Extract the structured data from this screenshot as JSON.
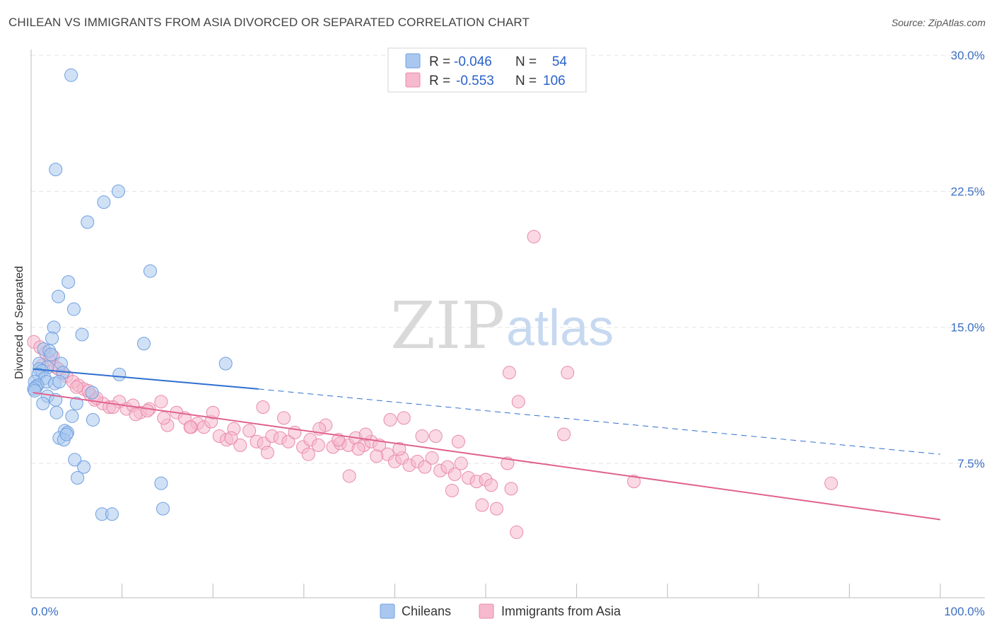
{
  "title": "CHILEAN VS IMMIGRANTS FROM ASIA DIVORCED OR SEPARATED CORRELATION CHART",
  "source": "Source: ZipAtlas.com",
  "watermark": {
    "zip": "ZIP",
    "atlas": "atlas"
  },
  "legend_box": {
    "rows": [
      {
        "r_label": "R =",
        "r_value": "-0.046",
        "n_label": "N =",
        "n_value": "54"
      },
      {
        "r_label": "R =",
        "r_value": "-0.553",
        "n_label": "N =",
        "n_value": "106"
      }
    ]
  },
  "bottom_legend": [
    "Chileans",
    "Immigrants from Asia"
  ],
  "colors": {
    "blue_fill": "#aac8ef",
    "blue_stroke": "#6f9fe0",
    "blue_line": "#2f6fd0",
    "pink_fill": "#f6b9cd",
    "pink_stroke": "#e98aab",
    "pink_line": "#e0628f",
    "tick_text": "#3b6fc4",
    "grid": "#e3e3e3"
  },
  "chart_data": {
    "type": "scatter",
    "xlabel": "",
    "ylabel": "Divorced or Separated",
    "xlim": [
      0,
      100
    ],
    "ylim": [
      0,
      31
    ],
    "x_tick_labels": [
      "0.0%",
      "100.0%"
    ],
    "y_ticks": [
      7.5,
      15.0,
      22.5,
      30.0
    ],
    "y_tick_labels": [
      "7.5%",
      "15.0%",
      "22.5%",
      "30.0%"
    ],
    "grid": "horizontal dashed",
    "legend_placement": "top-center",
    "series": [
      {
        "name": "Chileans",
        "color": "#aac8ef",
        "trend": {
          "x_start": 0.2,
          "y_start": 12.7,
          "x_solid_end": 25.0,
          "y_solid_end": 11.6,
          "x_end": 100,
          "y_end": 8.0
        },
        "points": [
          [
            4.4,
            28.9
          ],
          [
            2.7,
            23.7
          ],
          [
            9.6,
            22.5
          ],
          [
            8.0,
            21.9
          ],
          [
            6.2,
            20.8
          ],
          [
            13.1,
            18.1
          ],
          [
            4.1,
            17.5
          ],
          [
            3.0,
            16.7
          ],
          [
            4.7,
            16.0
          ],
          [
            2.5,
            15.0
          ],
          [
            5.6,
            14.6
          ],
          [
            2.3,
            14.4
          ],
          [
            12.4,
            14.1
          ],
          [
            1.4,
            13.8
          ],
          [
            2.0,
            13.7
          ],
          [
            2.2,
            13.5
          ],
          [
            21.4,
            13.0
          ],
          [
            0.9,
            13.0
          ],
          [
            3.3,
            13.0
          ],
          [
            1.8,
            12.8
          ],
          [
            0.9,
            12.7
          ],
          [
            1.2,
            12.6
          ],
          [
            3.5,
            12.5
          ],
          [
            0.8,
            12.4
          ],
          [
            9.7,
            12.4
          ],
          [
            1.5,
            12.2
          ],
          [
            1.7,
            12.0
          ],
          [
            0.4,
            12.0
          ],
          [
            2.6,
            11.9
          ],
          [
            3.1,
            12.0
          ],
          [
            0.7,
            11.8
          ],
          [
            0.5,
            11.7
          ],
          [
            0.3,
            11.6
          ],
          [
            6.7,
            11.4
          ],
          [
            0.4,
            11.5
          ],
          [
            1.8,
            11.2
          ],
          [
            2.7,
            11.0
          ],
          [
            5.0,
            10.8
          ],
          [
            1.3,
            10.8
          ],
          [
            2.8,
            10.3
          ],
          [
            4.5,
            10.1
          ],
          [
            6.8,
            9.9
          ],
          [
            3.7,
            9.3
          ],
          [
            4.0,
            9.2
          ],
          [
            3.1,
            8.9
          ],
          [
            3.6,
            8.8
          ],
          [
            4.8,
            7.7
          ],
          [
            5.8,
            7.3
          ],
          [
            5.1,
            6.7
          ],
          [
            14.3,
            6.4
          ],
          [
            14.5,
            5.0
          ],
          [
            7.8,
            4.7
          ],
          [
            8.9,
            4.7
          ],
          [
            3.9,
            9.1
          ]
        ]
      },
      {
        "name": "Immigrants from Asia",
        "color": "#f6b9cd",
        "trend": {
          "x_start": 0.2,
          "y_start": 11.4,
          "x_end": 100,
          "y_end": 4.4
        },
        "points": [
          [
            0.3,
            14.2
          ],
          [
            1.0,
            13.9
          ],
          [
            1.6,
            13.6
          ],
          [
            2.4,
            13.4
          ],
          [
            2.0,
            13.2
          ],
          [
            1.2,
            12.9
          ],
          [
            2.7,
            12.8
          ],
          [
            3.5,
            12.5
          ],
          [
            3.9,
            12.3
          ],
          [
            4.6,
            12.0
          ],
          [
            5.2,
            11.8
          ],
          [
            5.8,
            11.6
          ],
          [
            6.5,
            11.3
          ],
          [
            7.0,
            11.0
          ],
          [
            7.9,
            10.8
          ],
          [
            8.6,
            10.6
          ],
          [
            9.7,
            10.9
          ],
          [
            10.5,
            10.5
          ],
          [
            11.2,
            10.7
          ],
          [
            12.0,
            10.3
          ],
          [
            13.0,
            10.5
          ],
          [
            14.3,
            10.9
          ],
          [
            15.0,
            9.6
          ],
          [
            16.0,
            10.3
          ],
          [
            16.9,
            10.0
          ],
          [
            17.6,
            9.5
          ],
          [
            18.3,
            9.7
          ],
          [
            19.0,
            9.5
          ],
          [
            19.8,
            9.8
          ],
          [
            20.7,
            9.0
          ],
          [
            21.5,
            8.8
          ],
          [
            22.3,
            9.4
          ],
          [
            23.0,
            8.5
          ],
          [
            24.0,
            9.3
          ],
          [
            24.8,
            8.7
          ],
          [
            25.6,
            8.6
          ],
          [
            26.5,
            9.0
          ],
          [
            27.4,
            8.9
          ],
          [
            28.3,
            8.7
          ],
          [
            29.0,
            9.2
          ],
          [
            29.9,
            8.4
          ],
          [
            30.7,
            8.8
          ],
          [
            31.6,
            8.5
          ],
          [
            32.4,
            9.6
          ],
          [
            33.2,
            8.4
          ],
          [
            34.0,
            8.6
          ],
          [
            34.9,
            8.5
          ],
          [
            35.7,
            8.9
          ],
          [
            36.6,
            8.5
          ],
          [
            37.4,
            8.7
          ],
          [
            38.3,
            8.5
          ],
          [
            39.2,
            8.0
          ],
          [
            40.0,
            7.6
          ],
          [
            40.8,
            7.8
          ],
          [
            41.6,
            7.4
          ],
          [
            42.5,
            7.6
          ],
          [
            43.3,
            7.3
          ],
          [
            44.1,
            7.8
          ],
          [
            45.0,
            7.1
          ],
          [
            45.8,
            7.3
          ],
          [
            46.6,
            6.9
          ],
          [
            47.3,
            7.5
          ],
          [
            48.1,
            6.7
          ],
          [
            49.0,
            6.5
          ],
          [
            50.0,
            6.6
          ],
          [
            50.6,
            6.3
          ],
          [
            47.0,
            8.7
          ],
          [
            43.0,
            9.0
          ],
          [
            41.0,
            10.0
          ],
          [
            40.5,
            8.3
          ],
          [
            36.0,
            8.3
          ],
          [
            35.0,
            6.8
          ],
          [
            38.0,
            7.9
          ],
          [
            30.5,
            8.0
          ],
          [
            27.8,
            10.0
          ],
          [
            25.5,
            10.6
          ],
          [
            20.0,
            10.3
          ],
          [
            17.5,
            9.5
          ],
          [
            11.5,
            10.2
          ],
          [
            9.0,
            10.6
          ],
          [
            7.2,
            11.1
          ],
          [
            5.0,
            11.7
          ],
          [
            3.0,
            12.7
          ],
          [
            6.3,
            11.5
          ],
          [
            12.8,
            10.4
          ],
          [
            14.6,
            10.0
          ],
          [
            22.0,
            8.9
          ],
          [
            26.0,
            8.1
          ],
          [
            31.7,
            9.4
          ],
          [
            33.8,
            8.8
          ],
          [
            36.8,
            9.1
          ],
          [
            39.5,
            9.9
          ],
          [
            44.5,
            9.0
          ],
          [
            46.3,
            6.0
          ],
          [
            49.6,
            5.2
          ],
          [
            51.2,
            5.0
          ],
          [
            53.4,
            3.7
          ],
          [
            52.6,
            12.5
          ],
          [
            53.6,
            10.9
          ],
          [
            55.3,
            20.0
          ],
          [
            59.0,
            12.5
          ],
          [
            58.6,
            9.1
          ],
          [
            52.4,
            7.5
          ],
          [
            52.8,
            6.1
          ],
          [
            66.3,
            6.5
          ],
          [
            88.0,
            6.4
          ]
        ]
      }
    ]
  }
}
